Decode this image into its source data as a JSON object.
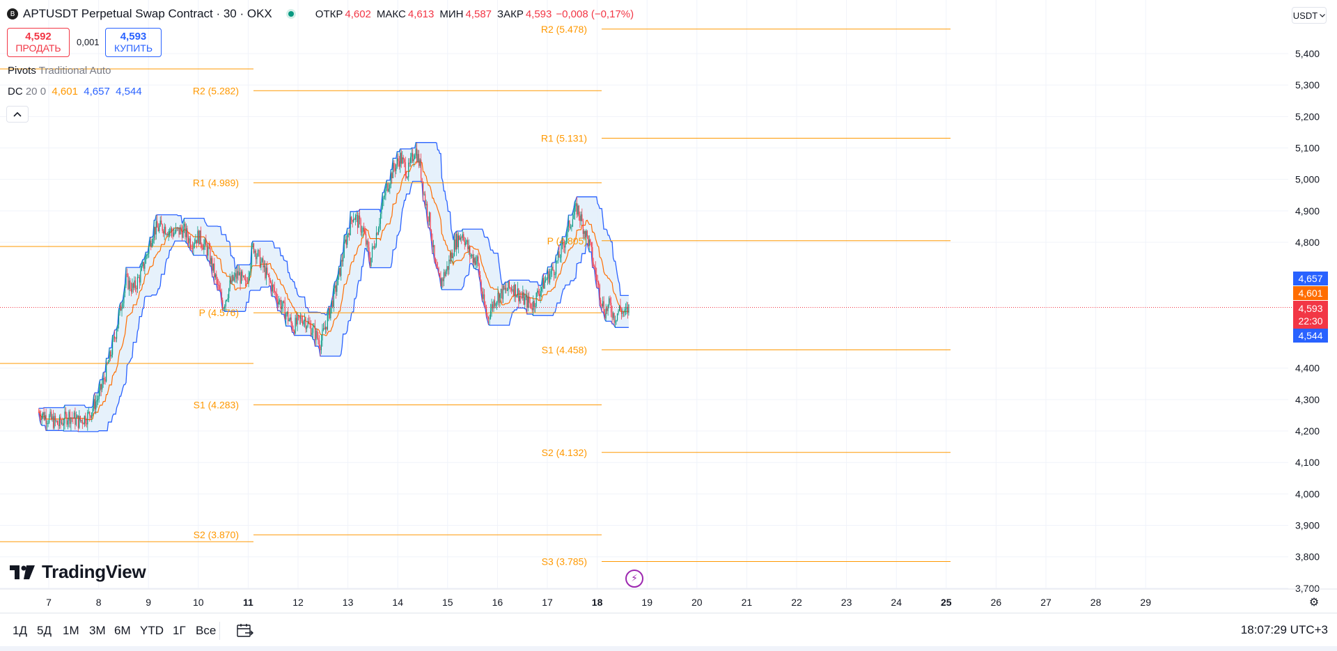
{
  "header": {
    "coin_glyph": "B",
    "title": "APTUSDT Perpetual Swap Contract · 30 · OKX",
    "ohlc": [
      {
        "k": "ОТКР",
        "v": "4,602"
      },
      {
        "k": "МАКС",
        "v": "4,613"
      },
      {
        "k": "МИН",
        "v": "4,587"
      },
      {
        "k": "ЗАКР",
        "v": "4,593"
      },
      {
        "k": "",
        "v": "−0,008 (−0,17%)"
      }
    ]
  },
  "trade": {
    "sell_price": "4,592",
    "sell_label": "ПРОДАТЬ",
    "spread": "0,001",
    "buy_price": "4,593",
    "buy_label": "КУПИТЬ"
  },
  "legend": {
    "pivots_name": "Pivots",
    "pivots_params": "Traditional Auto",
    "dc_name": "DC",
    "dc_params": "20 0",
    "dc_mid": "4,601",
    "dc_upper": "4,657",
    "dc_lower": "4,544",
    "collapse_icon": "chevron-up-icon"
  },
  "currency": "USDT",
  "price_tags": {
    "dc_upper": "4,657",
    "dc_mid": "4,601",
    "last": "4,593",
    "countdown": "22:30",
    "dc_lower": "4,544"
  },
  "colors": {
    "up": "#089981",
    "down": "#f23645",
    "pivot": "#ff9800",
    "channel": "#2962ff",
    "channel_fill": "#e3f0fb",
    "midline": "#ff6d00",
    "grid": "#f0f3fa"
  },
  "logo": "TradingView",
  "bottom": {
    "ranges": [
      "1Д",
      "5Д",
      "1М",
      "3М",
      "6М",
      "YTD",
      "1Г",
      "Все"
    ],
    "clock": "18:07:29 UTC+3"
  },
  "chart_data": {
    "type": "candlestick",
    "symbol": "APTUSDT",
    "interval": "30",
    "y_ticks": [
      "3,700",
      "3,800",
      "3,900",
      "4,000",
      "4,100",
      "4,200",
      "4,300",
      "4,400",
      "4,800",
      "4,900",
      "5,000",
      "5,100",
      "5,200",
      "5,300",
      "5,400"
    ],
    "ylim": [
      3.7,
      5.5
    ],
    "x_ticks": [
      "7",
      "8",
      "9",
      "10",
      "11",
      "12",
      "13",
      "14",
      "15",
      "16",
      "17",
      "18",
      "19",
      "20",
      "21",
      "22",
      "23",
      "24",
      "25",
      "26",
      "27",
      "28",
      "29"
    ],
    "bold_x_ticks": [
      "11",
      "18",
      "25"
    ],
    "pivot_periods": [
      {
        "levels": [
          {
            "label": "R2 (5.282)",
            "value": 5.282
          },
          {
            "label": "R1 (4.989)",
            "value": 4.989
          },
          {
            "label": "P (4.576)",
            "value": 4.576
          },
          {
            "label": "S1 (4.283)",
            "value": 4.283
          },
          {
            "label": "S2 (3.870)",
            "value": 3.87
          }
        ]
      },
      {
        "levels": [
          {
            "label": "R2 (5.478)",
            "value": 5.478
          },
          {
            "label": "R1 (5.131)",
            "value": 5.131
          },
          {
            "label": "P (4.805)",
            "value": 4.805
          },
          {
            "label": "S1 (4.458)",
            "value": 4.458
          },
          {
            "label": "S2 (4.132)",
            "value": 4.132
          },
          {
            "label": "S3 (3.785)",
            "value": 3.785
          }
        ]
      }
    ],
    "price_path": [
      [
        6.8,
        4.26
      ],
      [
        7.0,
        4.24
      ],
      [
        7.2,
        4.22
      ],
      [
        7.4,
        4.25
      ],
      [
        7.6,
        4.23
      ],
      [
        7.8,
        4.25
      ],
      [
        8.0,
        4.31
      ],
      [
        8.1,
        4.36
      ],
      [
        8.25,
        4.45
      ],
      [
        8.35,
        4.52
      ],
      [
        8.45,
        4.6
      ],
      [
        8.55,
        4.68
      ],
      [
        8.7,
        4.65
      ],
      [
        8.85,
        4.7
      ],
      [
        9.0,
        4.78
      ],
      [
        9.1,
        4.84
      ],
      [
        9.3,
        4.85
      ],
      [
        9.5,
        4.83
      ],
      [
        9.7,
        4.84
      ],
      [
        9.85,
        4.8
      ],
      [
        10.0,
        4.82
      ],
      [
        10.2,
        4.77
      ],
      [
        10.35,
        4.68
      ],
      [
        10.5,
        4.6
      ],
      [
        10.65,
        4.67
      ],
      [
        10.8,
        4.7
      ],
      [
        10.95,
        4.66
      ],
      [
        11.1,
        4.79
      ],
      [
        11.3,
        4.72
      ],
      [
        11.5,
        4.65
      ],
      [
        11.7,
        4.59
      ],
      [
        11.9,
        4.53
      ],
      [
        12.1,
        4.56
      ],
      [
        12.3,
        4.52
      ],
      [
        12.45,
        4.48
      ],
      [
        12.6,
        4.56
      ],
      [
        12.8,
        4.68
      ],
      [
        12.95,
        4.8
      ],
      [
        13.1,
        4.89
      ],
      [
        13.3,
        4.84
      ],
      [
        13.45,
        4.74
      ],
      [
        13.6,
        4.85
      ],
      [
        13.75,
        4.96
      ],
      [
        13.9,
        5.03
      ],
      [
        14.05,
        5.07
      ],
      [
        14.2,
        5.02
      ],
      [
        14.35,
        5.1
      ],
      [
        14.45,
        5.04
      ],
      [
        14.55,
        4.93
      ],
      [
        14.65,
        4.86
      ],
      [
        14.75,
        4.72
      ],
      [
        14.85,
        4.67
      ],
      [
        15.0,
        4.72
      ],
      [
        15.15,
        4.8
      ],
      [
        15.3,
        4.83
      ],
      [
        15.45,
        4.76
      ],
      [
        15.6,
        4.74
      ],
      [
        15.7,
        4.62
      ],
      [
        15.8,
        4.56
      ],
      [
        15.95,
        4.62
      ],
      [
        16.1,
        4.64
      ],
      [
        16.3,
        4.66
      ],
      [
        16.5,
        4.62
      ],
      [
        16.7,
        4.6
      ],
      [
        16.85,
        4.65
      ],
      [
        17.0,
        4.69
      ],
      [
        17.15,
        4.72
      ],
      [
        17.3,
        4.78
      ],
      [
        17.45,
        4.86
      ],
      [
        17.6,
        4.91
      ],
      [
        17.72,
        4.85
      ],
      [
        17.85,
        4.79
      ],
      [
        17.95,
        4.71
      ],
      [
        18.05,
        4.64
      ],
      [
        18.15,
        4.58
      ],
      [
        18.25,
        4.6
      ],
      [
        18.35,
        4.56
      ],
      [
        18.45,
        4.59
      ],
      [
        18.55,
        4.57
      ],
      [
        18.65,
        4.593
      ]
    ]
  }
}
